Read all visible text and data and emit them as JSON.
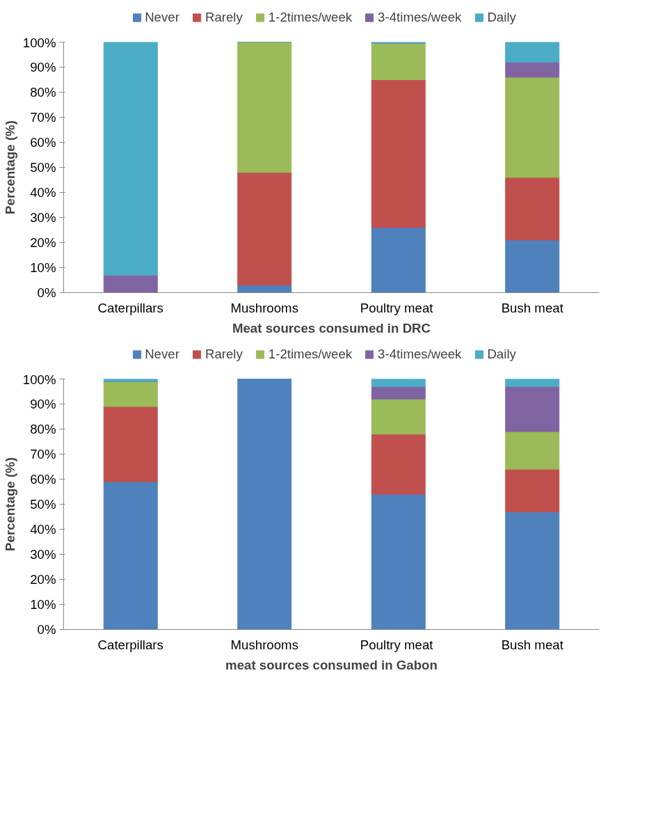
{
  "chart_data": [
    {
      "type": "bar",
      "stacked": true,
      "xlabel": "Meat sources consumed in DRC",
      "ylabel": "Percentage (%)",
      "categories": [
        "Caterpillars",
        "Mushrooms",
        "Poultry  meat",
        "Bush meat"
      ],
      "ylim": [
        0,
        100
      ],
      "yticks": [
        {
          "value": 0,
          "label": "0%"
        },
        {
          "value": 10,
          "label": "10%"
        },
        {
          "value": 20,
          "label": "20%"
        },
        {
          "value": 30,
          "label": "30%"
        },
        {
          "value": 40,
          "label": "40%"
        },
        {
          "value": 50,
          "label": "50%"
        },
        {
          "value": 60,
          "label": "60%"
        },
        {
          "value": 70,
          "label": "70%"
        },
        {
          "value": 80,
          "label": "80%"
        },
        {
          "value": 90,
          "label": "90%"
        },
        {
          "value": 100,
          "label": "100%"
        }
      ],
      "grid": false,
      "legend": "top",
      "series": [
        {
          "name": "Never",
          "color": "#4f81bd",
          "values": [
            0,
            3,
            26,
            21
          ]
        },
        {
          "name": "Rarely",
          "color": "#c0504d",
          "values": [
            0,
            45,
            59,
            25
          ]
        },
        {
          "name": "1-2times/week",
          "color": "#9bbb59",
          "values": [
            0,
            52,
            14.6,
            40
          ]
        },
        {
          "name": "3-4times/week",
          "color": "#8064a2",
          "values": [
            7,
            0,
            0,
            6
          ]
        },
        {
          "name": "Daily",
          "color": "#4bacc6",
          "values": [
            93,
            0,
            0.4,
            8
          ]
        }
      ]
    },
    {
      "type": "bar",
      "stacked": true,
      "xlabel": "meat sources consumed in Gabon",
      "ylabel": "Percentage (%)",
      "categories": [
        "Caterpillars",
        "Mushrooms",
        "Poultry  meat",
        "Bush meat"
      ],
      "ylim": [
        0,
        100
      ],
      "yticks": [
        {
          "value": 0,
          "label": "0%"
        },
        {
          "value": 10,
          "label": "10%"
        },
        {
          "value": 20,
          "label": "20%"
        },
        {
          "value": 30,
          "label": "30%"
        },
        {
          "value": 40,
          "label": "40%"
        },
        {
          "value": 50,
          "label": "50%"
        },
        {
          "value": 60,
          "label": "60%"
        },
        {
          "value": 70,
          "label": "70%"
        },
        {
          "value": 80,
          "label": "80%"
        },
        {
          "value": 90,
          "label": "90%"
        },
        {
          "value": 100,
          "label": "100%"
        }
      ],
      "grid": false,
      "legend": "top",
      "series": [
        {
          "name": "Never",
          "color": "#4f81bd",
          "values": [
            59,
            100,
            54,
            47
          ]
        },
        {
          "name": "Rarely",
          "color": "#c0504d",
          "values": [
            30,
            0,
            24,
            17
          ]
        },
        {
          "name": "1-2times/week",
          "color": "#9bbb59",
          "values": [
            10,
            0,
            14,
            15
          ]
        },
        {
          "name": "3-4times/week",
          "color": "#8064a2",
          "values": [
            0,
            0,
            5,
            18
          ]
        },
        {
          "name": "Daily",
          "color": "#4bacc6",
          "values": [
            1,
            0,
            3,
            3
          ]
        }
      ]
    }
  ]
}
